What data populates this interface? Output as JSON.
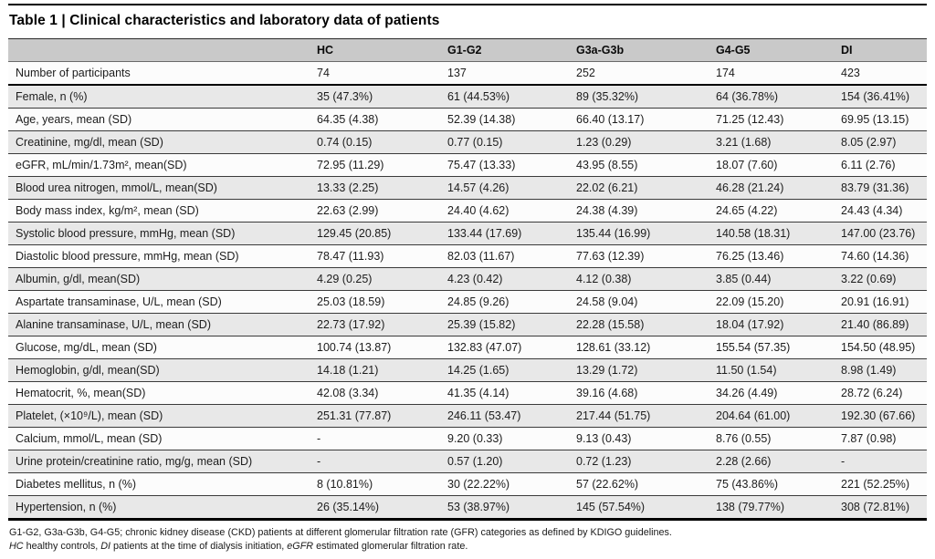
{
  "table": {
    "title": "Table 1 | Clinical characteristics and laboratory data of patients",
    "columns": [
      "",
      "HC",
      "G1-G2",
      "G3a-G3b",
      "G4-G5",
      "DI"
    ],
    "rows": [
      {
        "label": "Number of participants",
        "values": [
          "74",
          "137",
          "252",
          "174",
          "423"
        ]
      },
      {
        "label": "Female, n (%)",
        "values": [
          "35 (47.3%)",
          "61 (44.53%)",
          "89 (35.32%)",
          "64 (36.78%)",
          "154 (36.41%)"
        ]
      },
      {
        "label": "Age, years, mean (SD)",
        "values": [
          "64.35 (4.38)",
          "52.39 (14.38)",
          "66.40 (13.17)",
          "71.25 (12.43)",
          "69.95 (13.15)"
        ]
      },
      {
        "label": "Creatinine, mg/dl, mean (SD)",
        "values": [
          "0.74 (0.15)",
          "0.77 (0.15)",
          "1.23 (0.29)",
          "3.21 (1.68)",
          "8.05 (2.97)"
        ]
      },
      {
        "label": "eGFR, mL/min/1.73m², mean(SD)",
        "values": [
          "72.95 (11.29)",
          "75.47 (13.33)",
          "43.95 (8.55)",
          "18.07 (7.60)",
          "6.11 (2.76)"
        ]
      },
      {
        "label": "Blood urea nitrogen, mmol/L, mean(SD)",
        "values": [
          "13.33 (2.25)",
          "14.57 (4.26)",
          "22.02 (6.21)",
          "46.28 (21.24)",
          "83.79 (31.36)"
        ]
      },
      {
        "label": "Body mass index, kg/m², mean (SD)",
        "values": [
          "22.63 (2.99)",
          "24.40 (4.62)",
          "24.38 (4.39)",
          "24.65 (4.22)",
          "24.43 (4.34)"
        ]
      },
      {
        "label": "Systolic blood pressure, mmHg, mean (SD)",
        "values": [
          "129.45 (20.85)",
          "133.44 (17.69)",
          "135.44 (16.99)",
          "140.58 (18.31)",
          "147.00 (23.76)"
        ]
      },
      {
        "label": "Diastolic blood pressure, mmHg, mean (SD)",
        "values": [
          "78.47 (11.93)",
          "82.03 (11.67)",
          "77.63 (12.39)",
          "76.25 (13.46)",
          "74.60 (14.36)"
        ]
      },
      {
        "label": "Albumin, g/dl, mean(SD)",
        "values": [
          "4.29 (0.25)",
          "4.23 (0.42)",
          "4.12 (0.38)",
          "3.85 (0.44)",
          "3.22 (0.69)"
        ]
      },
      {
        "label": "Aspartate transaminase, U/L, mean (SD)",
        "values": [
          "25.03 (18.59)",
          "24.85 (9.26)",
          "24.58 (9.04)",
          "22.09 (15.20)",
          "20.91 (16.91)"
        ]
      },
      {
        "label": "Alanine transaminase, U/L, mean (SD)",
        "values": [
          "22.73 (17.92)",
          "25.39 (15.82)",
          "22.28 (15.58)",
          "18.04 (17.92)",
          "21.40 (86.89)"
        ]
      },
      {
        "label": "Glucose, mg/dL, mean (SD)",
        "values": [
          "100.74 (13.87)",
          "132.83 (47.07)",
          "128.61 (33.12)",
          "155.54 (57.35)",
          "154.50 (48.95)"
        ]
      },
      {
        "label": "Hemoglobin, g/dl, mean(SD)",
        "values": [
          "14.18 (1.21)",
          "14.25 (1.65)",
          "13.29 (1.72)",
          "11.50 (1.54)",
          "8.98 (1.49)"
        ]
      },
      {
        "label": "Hematocrit, %, mean(SD)",
        "values": [
          "42.08 (3.34)",
          "41.35 (4.14)",
          "39.16 (4.68)",
          "34.26 (4.49)",
          "28.72 (6.24)"
        ]
      },
      {
        "label": "Platelet, (×10⁹/L), mean (SD)",
        "values": [
          "251.31 (77.87)",
          "246.11 (53.47)",
          "217.44 (51.75)",
          "204.64 (61.00)",
          "192.30 (67.66)"
        ]
      },
      {
        "label": "Calcium, mmol/L, mean (SD)",
        "values": [
          "-",
          "9.20 (0.33)",
          "9.13 (0.43)",
          "8.76 (0.55)",
          "7.87 (0.98)"
        ]
      },
      {
        "label": "Urine protein/creatinine ratio, mg/g, mean (SD)",
        "values": [
          "-",
          "0.57 (1.20)",
          "0.72 (1.23)",
          "2.28 (2.66)",
          "-"
        ]
      },
      {
        "label": "Diabetes mellitus, n (%)",
        "values": [
          "8 (10.81%)",
          "30 (22.22%)",
          "57 (22.62%)",
          "75 (43.86%)",
          "221 (52.25%)"
        ]
      },
      {
        "label": "Hypertension, n (%)",
        "values": [
          "26 (35.14%)",
          "53 (38.97%)",
          "145 (57.54%)",
          "138 (79.77%)",
          "308 (72.81%)"
        ]
      }
    ]
  },
  "footnotes": {
    "line1": "G1-G2, G3a-G3b, G4-G5; chronic kidney disease (CKD) patients at different glomerular filtration rate (GFR) categories as defined by KDIGO guidelines.",
    "line2_parts": [
      {
        "text": "HC",
        "italic": true
      },
      {
        "text": " healthy controls, ",
        "italic": false
      },
      {
        "text": "DI",
        "italic": true
      },
      {
        "text": " patients at the time of dialysis initiation, ",
        "italic": false
      },
      {
        "text": "eGFR",
        "italic": true
      },
      {
        "text": " estimated glomerular filtration rate.",
        "italic": false
      }
    ]
  },
  "colors": {
    "header_bg": "#c9c9c9",
    "row_shade": "#e8e8e8",
    "rule": "#000000"
  }
}
